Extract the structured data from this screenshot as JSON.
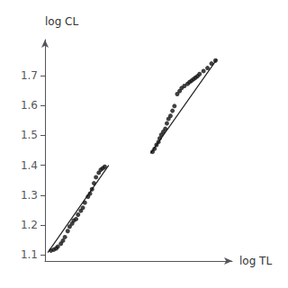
{
  "chart_data": {
    "type": "scatter",
    "xlabel": "log TL",
    "ylabel": "log CL",
    "xlim": [
      1.55,
      2.02
    ],
    "ylim": [
      1.08,
      1.82
    ],
    "yticks": [
      1.1,
      1.2,
      1.3,
      1.4,
      1.5,
      1.6,
      1.7
    ],
    "grid": false,
    "tick_labels": "y",
    "series": [
      {
        "type": "line",
        "color": "#222222",
        "x": [
          1.557,
          1.71
        ],
        "values": [
          1.108,
          1.4
        ]
      },
      {
        "type": "line",
        "color": "#222222",
        "x": [
          1.815,
          1.982
        ],
        "values": [
          1.44,
          1.755
        ]
      },
      {
        "type": "scatter",
        "color": "#111111",
        "x": [
          1.565,
          1.572,
          1.578,
          1.582,
          1.59,
          1.595,
          1.6,
          1.607,
          1.612,
          1.618,
          1.622,
          1.628,
          1.633,
          1.64,
          1.645,
          1.65,
          1.658,
          1.663,
          1.668,
          1.673,
          1.678,
          1.685,
          1.69,
          1.695,
          1.7
        ],
        "values": [
          1.115,
          1.118,
          1.122,
          1.128,
          1.138,
          1.148,
          1.16,
          1.18,
          1.195,
          1.205,
          1.215,
          1.22,
          1.235,
          1.248,
          1.258,
          1.275,
          1.295,
          1.305,
          1.32,
          1.34,
          1.36,
          1.375,
          1.385,
          1.39,
          1.395
        ]
      },
      {
        "type": "scatter",
        "color": "#111111",
        "x": [
          1.82,
          1.825,
          1.83,
          1.835,
          1.838,
          1.842,
          1.847,
          1.852,
          1.856,
          1.86,
          1.865,
          1.87,
          1.875,
          1.882,
          1.888,
          1.893,
          1.9,
          1.908,
          1.913,
          1.918,
          1.923,
          1.928,
          1.933,
          1.938,
          1.948,
          1.958,
          1.968,
          1.978
        ],
        "values": [
          1.445,
          1.455,
          1.468,
          1.478,
          1.49,
          1.502,
          1.512,
          1.522,
          1.54,
          1.555,
          1.565,
          1.582,
          1.598,
          1.638,
          1.648,
          1.658,
          1.665,
          1.672,
          1.678,
          1.683,
          1.688,
          1.693,
          1.698,
          1.705,
          1.715,
          1.725,
          1.74,
          1.75
        ]
      }
    ]
  }
}
